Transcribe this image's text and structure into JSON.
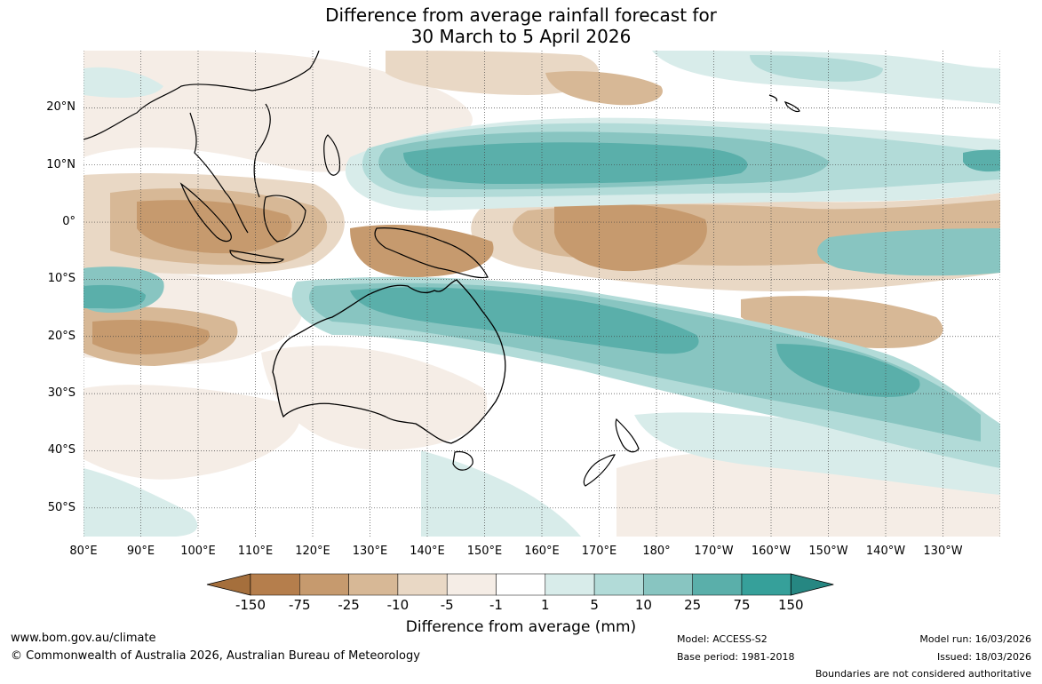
{
  "title": {
    "line1": "Difference from average rainfall forecast for",
    "line2": "30 March to 5 April 2026"
  },
  "map": {
    "lat_labels": [
      "20°N",
      "10°N",
      "0°",
      "10°S",
      "20°S",
      "30°S",
      "40°S",
      "50°S"
    ],
    "lon_labels": [
      "80°E",
      "90°E",
      "100°E",
      "110°E",
      "120°E",
      "130°E",
      "140°E",
      "150°E",
      "160°E",
      "170°E",
      "180°",
      "170°W",
      "160°W",
      "150°W",
      "140°W",
      "130°W"
    ],
    "extent": {
      "lon_min": 80,
      "lon_max": 240,
      "lat_min": -55,
      "lat_max": 30
    },
    "grid_spacing_deg": 10
  },
  "colorbar": {
    "title": "Difference from average (mm)",
    "labels": [
      "-150",
      "-75",
      "-25",
      "-10",
      "-5",
      "-1",
      "1",
      "5",
      "10",
      "25",
      "75",
      "150"
    ],
    "colors": [
      "#a56f3c",
      "#b57e4c",
      "#c69a6e",
      "#d7b896",
      "#e9d8c5",
      "#f5ede6",
      "#ffffff",
      "#d8ecea",
      "#b2dbd8",
      "#88c5c1",
      "#5aafaa",
      "#36a09a",
      "#268782"
    ]
  },
  "footer": {
    "website": "www.bom.gov.au/climate",
    "copyright": "© Commonwealth of Australia 2026, Australian Bureau of Meteorology",
    "model": "Model: ACCESS-S2",
    "base_period": "Base period: 1981-2018",
    "model_run": "Model run: 16/03/2026",
    "issued": "Issued: 18/03/2026",
    "boundaries": "Boundaries are not considered authoritative"
  }
}
